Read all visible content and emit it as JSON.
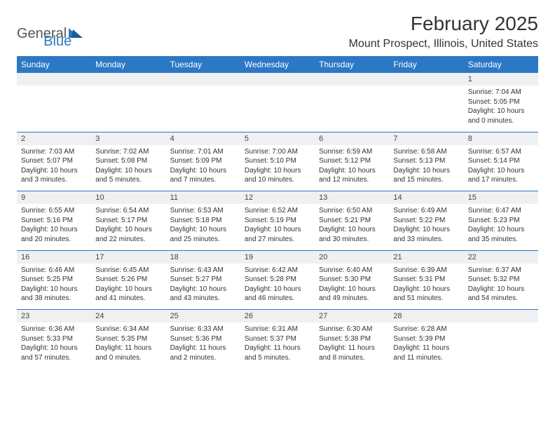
{
  "brand": {
    "part1": "General",
    "part2": "Blue"
  },
  "title": "February 2025",
  "location": "Mount Prospect, Illinois, United States",
  "colors": {
    "header_bg": "#2b78c5",
    "header_text": "#ffffff",
    "daynum_bg": "#eef0f2",
    "border": "#2b78c5",
    "text": "#333333"
  },
  "day_headers": [
    "Sunday",
    "Monday",
    "Tuesday",
    "Wednesday",
    "Thursday",
    "Friday",
    "Saturday"
  ],
  "weeks": [
    [
      null,
      null,
      null,
      null,
      null,
      null,
      {
        "n": "1",
        "sr": "7:04 AM",
        "ss": "5:05 PM",
        "dl": "10 hours and 0 minutes."
      }
    ],
    [
      {
        "n": "2",
        "sr": "7:03 AM",
        "ss": "5:07 PM",
        "dl": "10 hours and 3 minutes."
      },
      {
        "n": "3",
        "sr": "7:02 AM",
        "ss": "5:08 PM",
        "dl": "10 hours and 5 minutes."
      },
      {
        "n": "4",
        "sr": "7:01 AM",
        "ss": "5:09 PM",
        "dl": "10 hours and 7 minutes."
      },
      {
        "n": "5",
        "sr": "7:00 AM",
        "ss": "5:10 PM",
        "dl": "10 hours and 10 minutes."
      },
      {
        "n": "6",
        "sr": "6:59 AM",
        "ss": "5:12 PM",
        "dl": "10 hours and 12 minutes."
      },
      {
        "n": "7",
        "sr": "6:58 AM",
        "ss": "5:13 PM",
        "dl": "10 hours and 15 minutes."
      },
      {
        "n": "8",
        "sr": "6:57 AM",
        "ss": "5:14 PM",
        "dl": "10 hours and 17 minutes."
      }
    ],
    [
      {
        "n": "9",
        "sr": "6:55 AM",
        "ss": "5:16 PM",
        "dl": "10 hours and 20 minutes."
      },
      {
        "n": "10",
        "sr": "6:54 AM",
        "ss": "5:17 PM",
        "dl": "10 hours and 22 minutes."
      },
      {
        "n": "11",
        "sr": "6:53 AM",
        "ss": "5:18 PM",
        "dl": "10 hours and 25 minutes."
      },
      {
        "n": "12",
        "sr": "6:52 AM",
        "ss": "5:19 PM",
        "dl": "10 hours and 27 minutes."
      },
      {
        "n": "13",
        "sr": "6:50 AM",
        "ss": "5:21 PM",
        "dl": "10 hours and 30 minutes."
      },
      {
        "n": "14",
        "sr": "6:49 AM",
        "ss": "5:22 PM",
        "dl": "10 hours and 33 minutes."
      },
      {
        "n": "15",
        "sr": "6:47 AM",
        "ss": "5:23 PM",
        "dl": "10 hours and 35 minutes."
      }
    ],
    [
      {
        "n": "16",
        "sr": "6:46 AM",
        "ss": "5:25 PM",
        "dl": "10 hours and 38 minutes."
      },
      {
        "n": "17",
        "sr": "6:45 AM",
        "ss": "5:26 PM",
        "dl": "10 hours and 41 minutes."
      },
      {
        "n": "18",
        "sr": "6:43 AM",
        "ss": "5:27 PM",
        "dl": "10 hours and 43 minutes."
      },
      {
        "n": "19",
        "sr": "6:42 AM",
        "ss": "5:28 PM",
        "dl": "10 hours and 46 minutes."
      },
      {
        "n": "20",
        "sr": "6:40 AM",
        "ss": "5:30 PM",
        "dl": "10 hours and 49 minutes."
      },
      {
        "n": "21",
        "sr": "6:39 AM",
        "ss": "5:31 PM",
        "dl": "10 hours and 51 minutes."
      },
      {
        "n": "22",
        "sr": "6:37 AM",
        "ss": "5:32 PM",
        "dl": "10 hours and 54 minutes."
      }
    ],
    [
      {
        "n": "23",
        "sr": "6:36 AM",
        "ss": "5:33 PM",
        "dl": "10 hours and 57 minutes."
      },
      {
        "n": "24",
        "sr": "6:34 AM",
        "ss": "5:35 PM",
        "dl": "11 hours and 0 minutes."
      },
      {
        "n": "25",
        "sr": "6:33 AM",
        "ss": "5:36 PM",
        "dl": "11 hours and 2 minutes."
      },
      {
        "n": "26",
        "sr": "6:31 AM",
        "ss": "5:37 PM",
        "dl": "11 hours and 5 minutes."
      },
      {
        "n": "27",
        "sr": "6:30 AM",
        "ss": "5:38 PM",
        "dl": "11 hours and 8 minutes."
      },
      {
        "n": "28",
        "sr": "6:28 AM",
        "ss": "5:39 PM",
        "dl": "11 hours and 11 minutes."
      },
      null
    ]
  ],
  "labels": {
    "sunrise": "Sunrise: ",
    "sunset": "Sunset: ",
    "daylight": "Daylight: "
  }
}
